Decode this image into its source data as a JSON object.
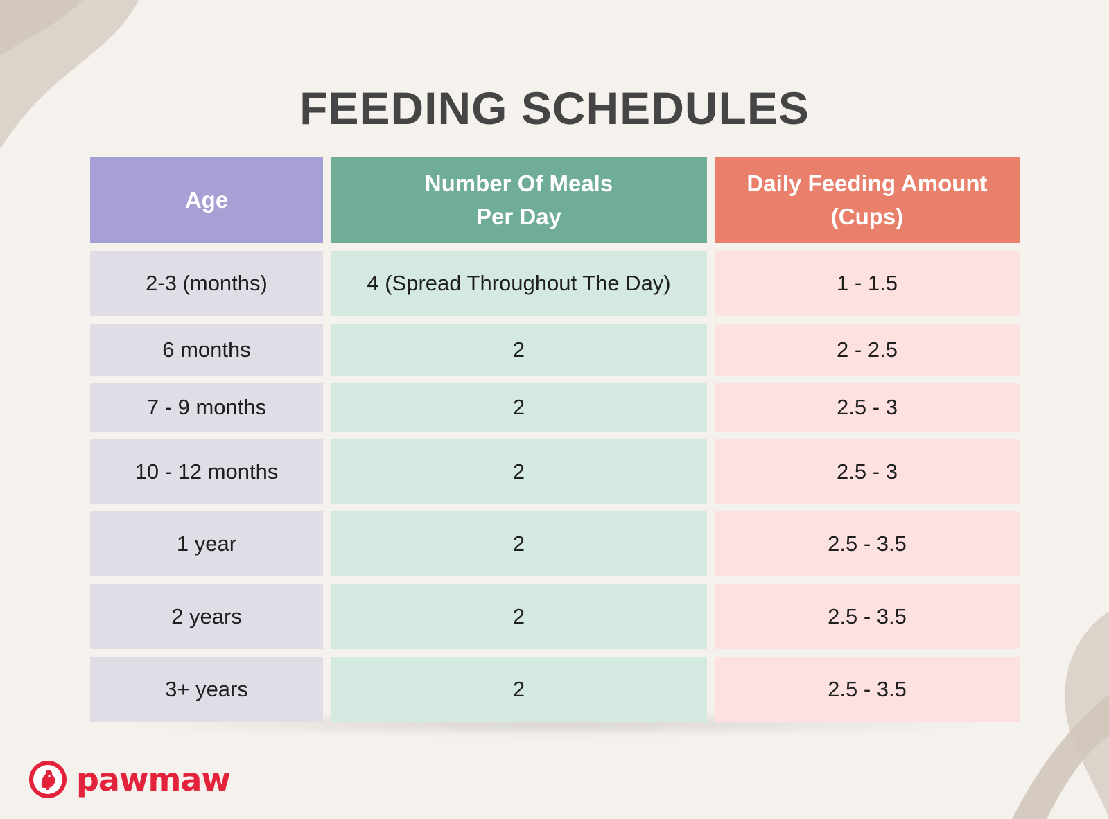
{
  "page": {
    "title": "FEEDING SCHEDULES"
  },
  "colors": {
    "background": "#f5f1ed",
    "age_header": "#a6a0d5",
    "meals_header": "#6fad96",
    "amount_header": "#e8806b",
    "age_cell": "#e0dde6",
    "meals_cell": "#d4eae1",
    "amount_cell": "#fde0e0",
    "brand": "#e3233b"
  },
  "table": {
    "headers": [
      "Age",
      "Number Of Meals\nPer Day",
      "Daily Feeding Amount\n(Cups)"
    ],
    "rows": [
      [
        "2-3 (months)",
        "4 (Spread Throughout The Day)",
        "1 - 1.5"
      ],
      [
        "6 months",
        "2",
        "2 - 2.5"
      ],
      [
        "7 - 9 months",
        "2",
        "2.5 - 3"
      ],
      [
        "10 - 12 months",
        "2",
        "2.5 - 3"
      ],
      [
        "1 year",
        "2",
        "2.5 - 3.5"
      ],
      [
        "2 years",
        "2",
        "2.5 - 3.5"
      ],
      [
        "3+ years",
        "2",
        "2.5 - 3.5"
      ]
    ]
  },
  "brand": {
    "name": "pawmaw",
    "icon": "pawmaw-dog-logo-icon"
  }
}
